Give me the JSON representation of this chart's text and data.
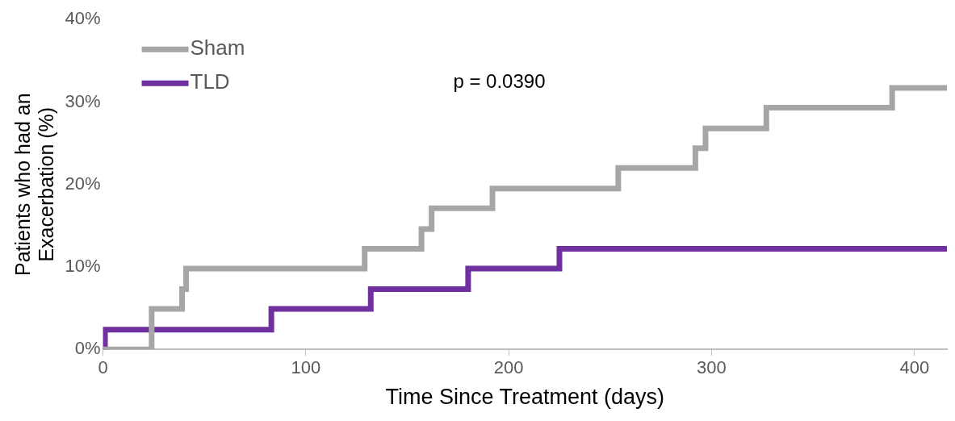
{
  "chart_data": {
    "type": "step",
    "xlabel": "Time Since Treatment (days)",
    "ylabel": "Patients who had an Exacerbation (%)",
    "xlim": [
      0,
      416
    ],
    "xticks": [
      0,
      100,
      200,
      300,
      400
    ],
    "ylim": [
      0,
      40
    ],
    "yticks": [
      {
        "value": 0,
        "label": "0%"
      },
      {
        "value": 10,
        "label": "10%"
      },
      {
        "value": 20,
        "label": "20%"
      },
      {
        "value": 30,
        "label": "30%"
      },
      {
        "value": 40,
        "label": "40%"
      }
    ],
    "grid": false,
    "legend": "top left",
    "marker": "none",
    "line_style": "solid",
    "annotations": [
      "p = 0.0390"
    ],
    "series": [
      {
        "name": "Sham",
        "color": "#a6a6a6",
        "x": [
          0,
          24,
          39,
          41,
          129,
          157,
          162,
          192,
          254,
          292,
          297,
          327,
          389,
          416
        ],
        "values": [
          0,
          4.9,
          7.3,
          9.8,
          12.2,
          14.6,
          17.1,
          19.5,
          22.0,
          24.4,
          26.8,
          29.3,
          31.7,
          31.7
        ]
      },
      {
        "name": "TLD",
        "color": "#7030a0",
        "x": [
          0,
          1,
          83,
          132,
          180,
          225,
          416
        ],
        "values": [
          0,
          2.4,
          4.9,
          7.3,
          9.8,
          12.2,
          12.2
        ]
      }
    ]
  }
}
